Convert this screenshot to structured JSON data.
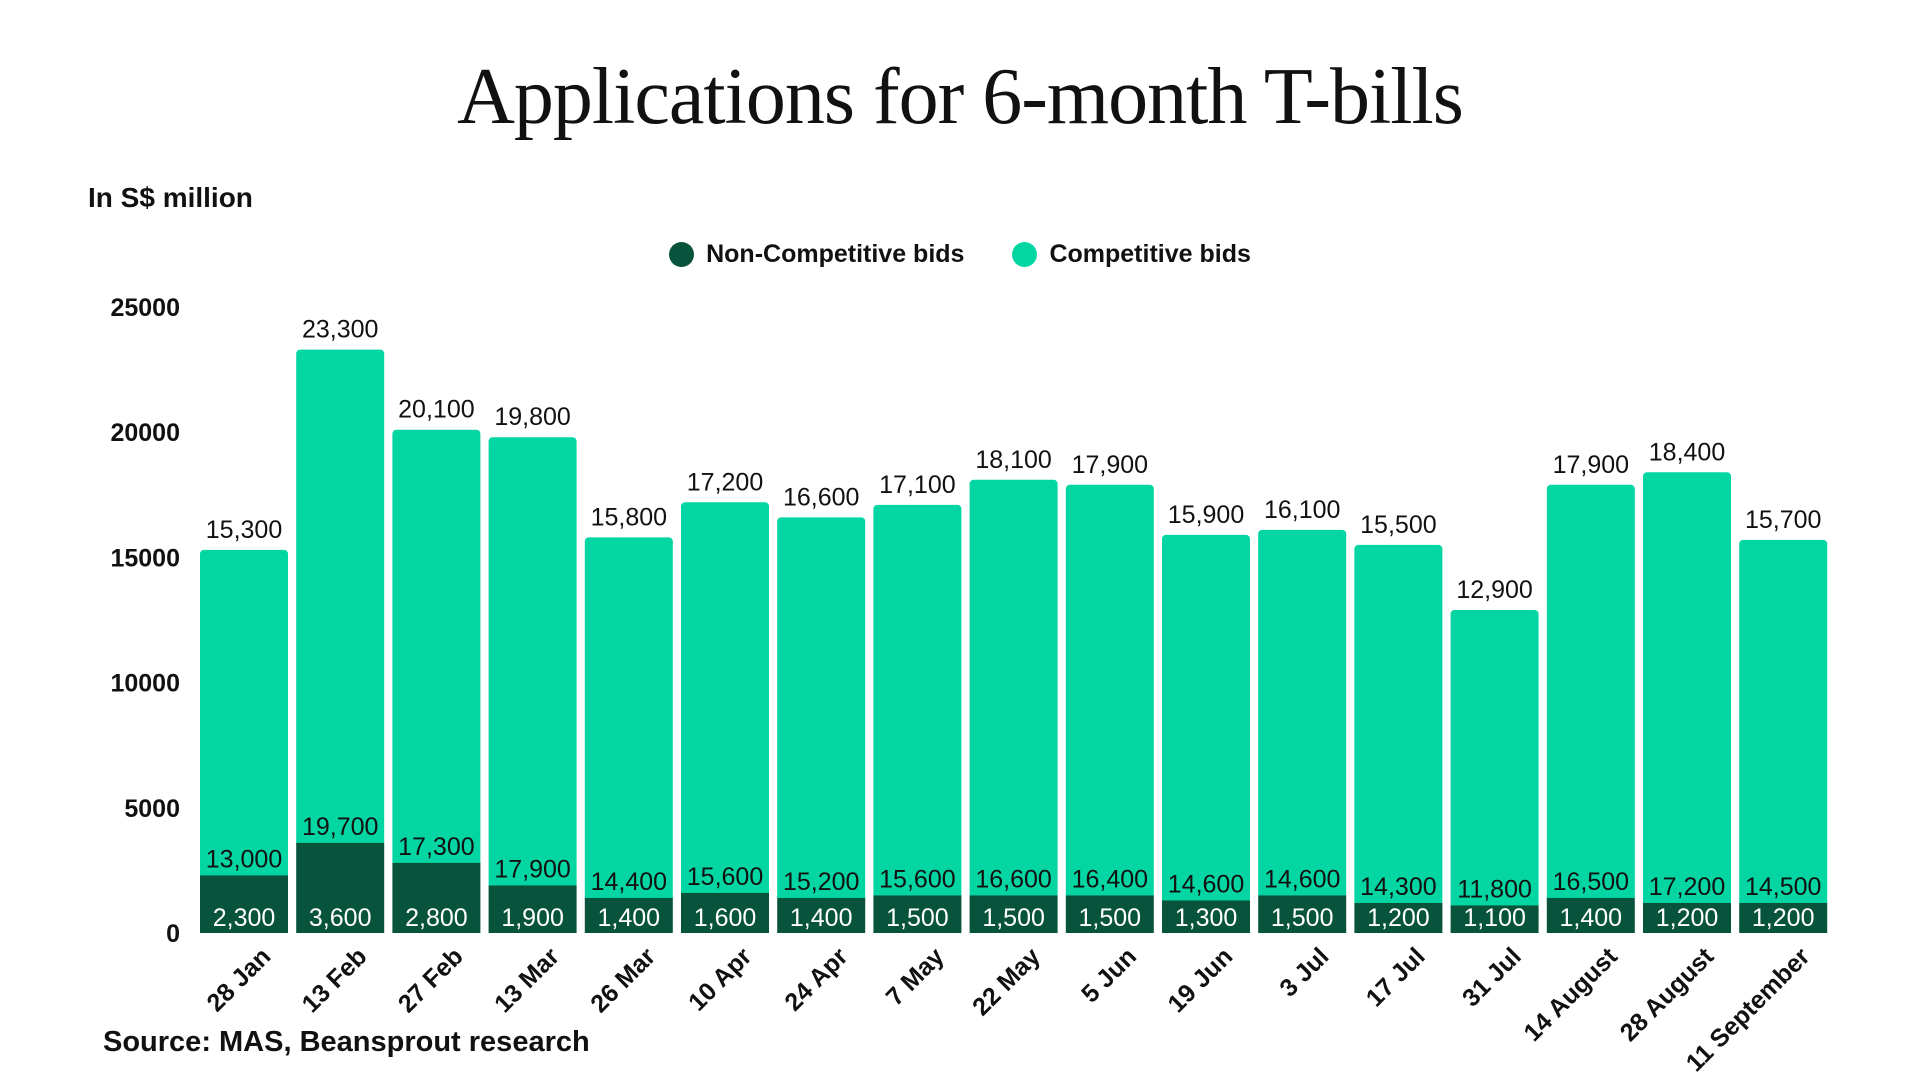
{
  "title": "Applications for 6-month T-bills",
  "unit_label": "In S$ million",
  "source": "Source: MAS, Beansprout research",
  "legend": [
    {
      "label": "Non-Competitive bids",
      "color": "#08533b"
    },
    {
      "label": "Competitive bids",
      "color": "#04d6a3"
    }
  ],
  "chart_data": {
    "type": "bar",
    "stacked": true,
    "title": "Applications for 6-month T-bills",
    "ylabel": "In S$ million",
    "xlabel": "",
    "ylim": [
      0,
      25000
    ],
    "yticks": [
      0,
      5000,
      10000,
      15000,
      20000,
      25000
    ],
    "ytick_labels": [
      "0",
      "5000",
      "10000",
      "15000",
      "20000",
      "25000"
    ],
    "categories": [
      "28 Jan",
      "13 Feb",
      "27 Feb",
      "13 Mar",
      "26 Mar",
      "10 Apr",
      "24 Apr",
      "7 May",
      "22 May",
      "5 Jun",
      "19 Jun",
      "3 Jul",
      "17 Jul",
      "31 Jul",
      "14 August",
      "28 August",
      "11 September"
    ],
    "series": [
      {
        "name": "Non-Competitive bids",
        "color": "#08533b",
        "values": [
          2300,
          3600,
          2800,
          1900,
          1400,
          1600,
          1400,
          1500,
          1500,
          1500,
          1300,
          1500,
          1200,
          1100,
          1400,
          1200,
          1200
        ],
        "labels": [
          "2,300",
          "3,600",
          "2,800",
          "1,900",
          "1,400",
          "1,600",
          "1,400",
          "1,500",
          "1,500",
          "1,500",
          "1,300",
          "1,500",
          "1,200",
          "1,100",
          "1,400",
          "1,200",
          "1,200"
        ]
      },
      {
        "name": "Competitive bids",
        "color": "#04d6a3",
        "values": [
          13000,
          19700,
          17300,
          17900,
          14400,
          15600,
          15200,
          15600,
          16600,
          16400,
          14600,
          14600,
          14300,
          11800,
          16500,
          17200,
          14500
        ],
        "labels": [
          "13,000",
          "19,700",
          "17,300",
          "17,900",
          "14,400",
          "15,600",
          "15,200",
          "15,600",
          "16,600",
          "16,400",
          "14,600",
          "14,600",
          "14,300",
          "11,800",
          "16,500",
          "17,200",
          "14,500"
        ]
      }
    ],
    "totals": [
      15300,
      23300,
      20100,
      19800,
      15800,
      17200,
      16600,
      17100,
      18100,
      17900,
      15900,
      16100,
      15500,
      12900,
      17900,
      18400,
      15700
    ],
    "total_labels": [
      "15,300",
      "23,300",
      "20,100",
      "19,800",
      "15,800",
      "17,200",
      "16,600",
      "17,100",
      "18,100",
      "17,900",
      "15,900",
      "16,100",
      "15,500",
      "12,900",
      "17,900",
      "18,400",
      "15,700"
    ]
  }
}
